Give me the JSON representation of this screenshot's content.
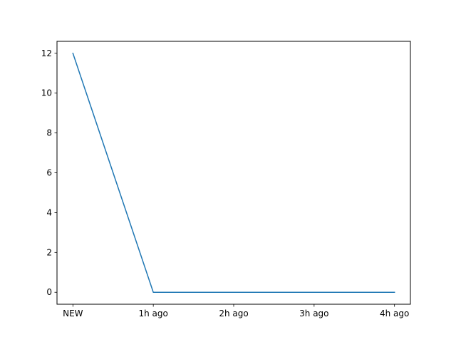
{
  "chart_data": {
    "type": "line",
    "categories": [
      "NEW",
      "1h ago",
      "2h ago",
      "3h ago",
      "4h ago"
    ],
    "series": [
      {
        "values": [
          12,
          0,
          0,
          0,
          0
        ],
        "color": "#1f77b4"
      }
    ],
    "title": "",
    "xlabel": "",
    "ylabel": "",
    "ylim": [
      -0.6,
      12.6
    ],
    "yticks": [
      0,
      2,
      4,
      6,
      8,
      10,
      12
    ],
    "grid": false
  }
}
